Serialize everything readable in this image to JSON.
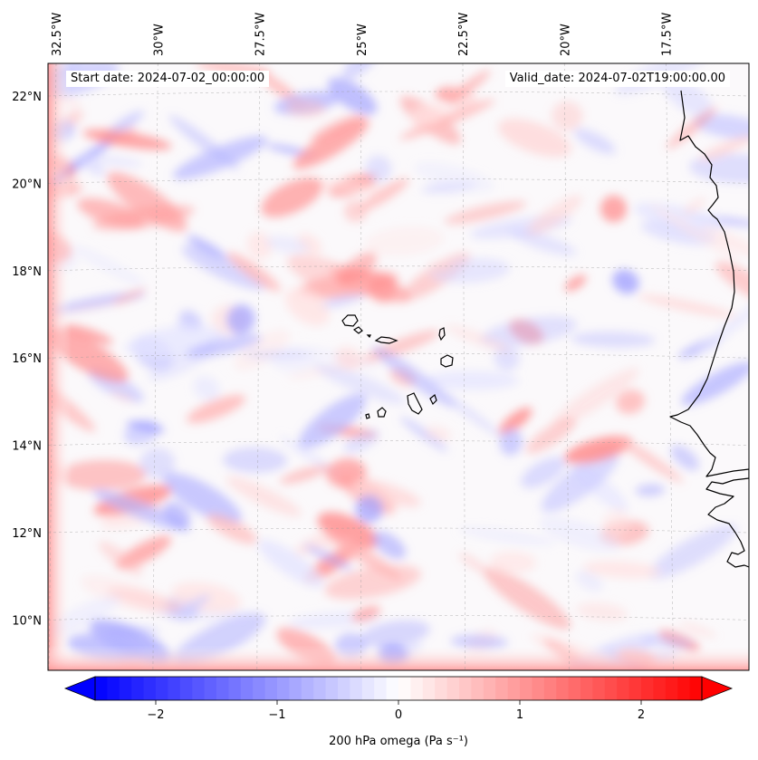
{
  "map": {
    "start_date_label": "Start date: 2024-07-02_00:00:00",
    "valid_date_label": "Valid_date: 2024-07-02T19:00:00.00",
    "lon_labels": [
      {
        "text": "32.5°W",
        "lon": -32.5
      },
      {
        "text": "30°W",
        "lon": -30
      },
      {
        "text": "27.5°W",
        "lon": -27.5
      },
      {
        "text": "25°W",
        "lon": -25
      },
      {
        "text": "22.5°W",
        "lon": -22.5
      },
      {
        "text": "20°W",
        "lon": -20
      },
      {
        "text": "17.5°W",
        "lon": -17.5
      }
    ],
    "lat_labels": [
      {
        "text": "22°N",
        "lat": 22
      },
      {
        "text": "20°N",
        "lat": 20
      },
      {
        "text": "18°N",
        "lat": 18
      },
      {
        "text": "16°N",
        "lat": 16
      },
      {
        "text": "14°N",
        "lat": 14
      },
      {
        "text": "12°N",
        "lat": 12
      },
      {
        "text": "10°N",
        "lat": 10
      }
    ],
    "field_colors": {
      "negative": "#0000ff",
      "zero": "#ffffff",
      "positive": "#ff0000"
    },
    "coastline_color": "#000000",
    "grid": "on"
  },
  "colorbar": {
    "label": "200 hPa omega (Pa s⁻¹)",
    "ticks": [
      "−2",
      "−1",
      "0",
      "1",
      "2"
    ],
    "tick_values": [
      -2,
      -1,
      0,
      1,
      2
    ],
    "range": [
      -2.5,
      2.5
    ],
    "extend": "both"
  }
}
